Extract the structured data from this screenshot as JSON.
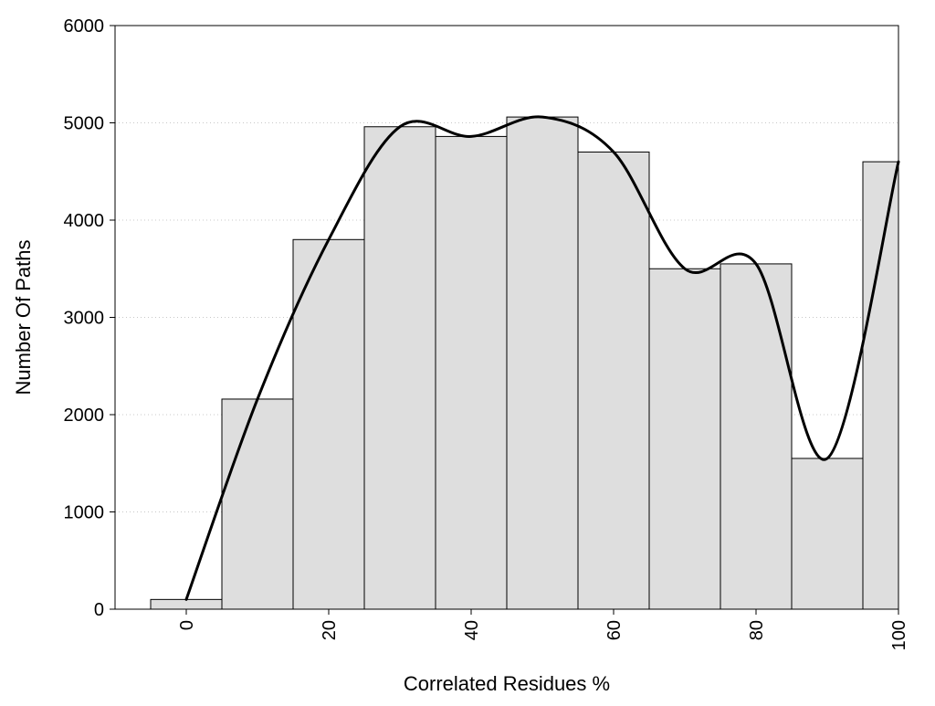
{
  "chart_data": {
    "type": "bar",
    "title": "",
    "xlabel": "Correlated Residues %",
    "ylabel": "Number Of Paths",
    "bars": [
      {
        "x": 0,
        "value": 100
      },
      {
        "x": 10,
        "value": 2160
      },
      {
        "x": 20,
        "value": 3800
      },
      {
        "x": 30,
        "value": 4960
      },
      {
        "x": 40,
        "value": 4860
      },
      {
        "x": 50,
        "value": 5060
      },
      {
        "x": 60,
        "value": 4700
      },
      {
        "x": 70,
        "value": 3500
      },
      {
        "x": 80,
        "value": 3550
      },
      {
        "x": 90,
        "value": 1550
      },
      {
        "x": 100,
        "value": 4600
      }
    ],
    "bin_width": 10,
    "bar_color": "#dedede",
    "bar_edge_color": "#000000",
    "smooth_line_color": "#000000",
    "xlim": [
      -10,
      100
    ],
    "ylim": [
      0,
      6000
    ],
    "xticks": [
      0,
      20,
      40,
      60,
      80,
      100
    ],
    "yticks": [
      0,
      1000,
      2000,
      3000,
      4000,
      5000,
      6000
    ],
    "xtick_rotation": "vertical",
    "grid": "horizontal dotted"
  }
}
